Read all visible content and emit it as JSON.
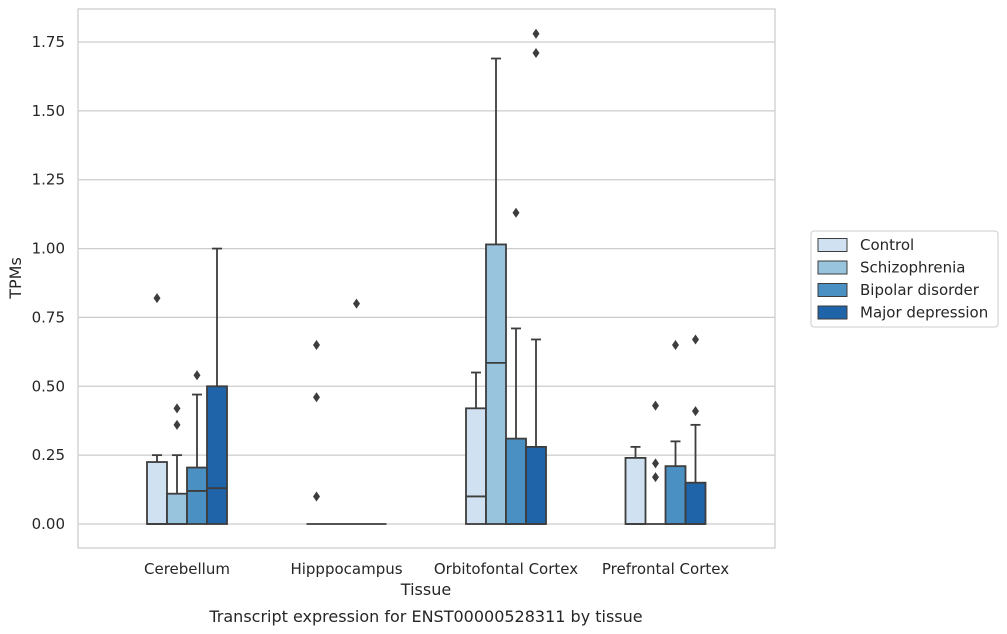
{
  "chart_data": {
    "type": "boxplot",
    "xlabel": "Tissue",
    "ylabel": "TPMs",
    "caption": "Transcript expression for ENST00000528311 by tissue",
    "ylim": [
      -0.09,
      1.87
    ],
    "yticks": [
      "0.00",
      "0.25",
      "0.50",
      "0.75",
      "1.00",
      "1.25",
      "1.50",
      "1.75"
    ],
    "grid": true,
    "legend_position": "right",
    "categories": [
      "Cerebellum",
      "Hipppocampus",
      "Orbitofontal Cortex",
      "Prefrontal Cortex"
    ],
    "series": [
      {
        "name": "Control",
        "color": "#d0e1f1",
        "boxes": [
          {
            "q1": 0.0,
            "median": 0.0,
            "q3": 0.225,
            "whislo": 0.0,
            "whishi": 0.25,
            "fliers": [
              0.82
            ]
          },
          {
            "q1": 0.0,
            "median": 0.0,
            "q3": 0.0,
            "whislo": 0.0,
            "whishi": 0.0,
            "fliers": [
              0.65,
              0.46,
              0.1
            ]
          },
          {
            "q1": 0.0,
            "median": 0.1,
            "q3": 0.42,
            "whislo": 0.0,
            "whishi": 0.55,
            "fliers": []
          },
          {
            "q1": 0.0,
            "median": 0.0,
            "q3": 0.24,
            "whislo": 0.0,
            "whishi": 0.28,
            "fliers": []
          }
        ]
      },
      {
        "name": "Schizophrenia",
        "color": "#99c4de",
        "boxes": [
          {
            "q1": 0.0,
            "median": 0.0,
            "q3": 0.11,
            "whislo": 0.0,
            "whishi": 0.25,
            "fliers": [
              0.42,
              0.36
            ]
          },
          {
            "q1": 0.0,
            "median": 0.0,
            "q3": 0.0,
            "whislo": 0.0,
            "whishi": 0.0,
            "fliers": []
          },
          {
            "q1": 0.0,
            "median": 0.585,
            "q3": 1.015,
            "whislo": 0.0,
            "whishi": 1.69,
            "fliers": []
          },
          {
            "q1": 0.0,
            "median": 0.0,
            "q3": 0.0,
            "whislo": 0.0,
            "whishi": 0.0,
            "fliers": [
              0.43,
              0.22,
              0.17
            ]
          }
        ]
      },
      {
        "name": "Bipolar disorder",
        "color": "#4a90c2",
        "boxes": [
          {
            "q1": 0.0,
            "median": 0.12,
            "q3": 0.205,
            "whislo": 0.0,
            "whishi": 0.47,
            "fliers": [
              0.54
            ]
          },
          {
            "q1": 0.0,
            "median": 0.0,
            "q3": 0.0,
            "whislo": 0.0,
            "whishi": 0.0,
            "fliers": [
              0.8
            ]
          },
          {
            "q1": 0.0,
            "median": 0.0,
            "q3": 0.31,
            "whislo": 0.0,
            "whishi": 0.71,
            "fliers": [
              1.13
            ]
          },
          {
            "q1": 0.0,
            "median": 0.0,
            "q3": 0.21,
            "whislo": 0.0,
            "whishi": 0.3,
            "fliers": [
              0.65
            ]
          }
        ]
      },
      {
        "name": "Major depression",
        "color": "#1f63a8",
        "boxes": [
          {
            "q1": 0.0,
            "median": 0.13,
            "q3": 0.5,
            "whislo": 0.0,
            "whishi": 1.0,
            "fliers": []
          },
          {
            "q1": 0.0,
            "median": 0.0,
            "q3": 0.0,
            "whislo": 0.0,
            "whishi": 0.0,
            "fliers": []
          },
          {
            "q1": 0.0,
            "median": 0.0,
            "q3": 0.28,
            "whislo": 0.0,
            "whishi": 0.67,
            "fliers": [
              1.78,
              1.71
            ]
          },
          {
            "q1": 0.0,
            "median": 0.0,
            "q3": 0.15,
            "whislo": 0.0,
            "whishi": 0.36,
            "fliers": [
              0.67,
              0.41
            ]
          }
        ]
      }
    ]
  }
}
